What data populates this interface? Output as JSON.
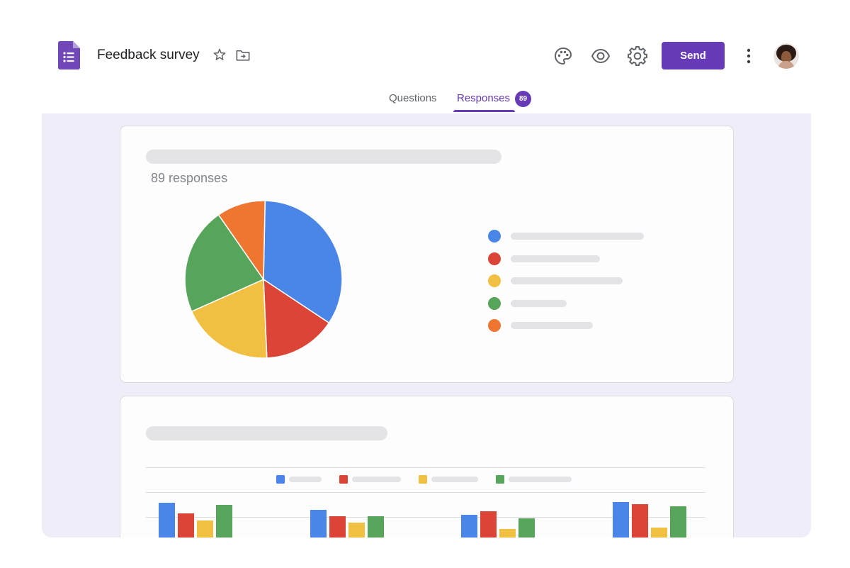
{
  "header": {
    "title": "Feedback survey",
    "send_label": "Send",
    "icons": [
      "forms-logo-icon",
      "star-icon",
      "move-to-folder-icon",
      "palette-icon",
      "preview-eye-icon",
      "settings-gear-icon",
      "more-vert-icon",
      "avatar"
    ]
  },
  "tabs": {
    "questions_label": "Questions",
    "responses_label": "Responses",
    "responses_count": "89"
  },
  "summary": {
    "response_count_text": "89 responses"
  },
  "colors": {
    "accent": "#673ab7",
    "blue": "#4a86e8",
    "red": "#db4437",
    "yellow": "#f1bf42",
    "green": "#57a55a",
    "orange": "#ee7631",
    "background": "#efedf7"
  },
  "chart_data": [
    {
      "type": "pie",
      "title": "",
      "slices": [
        {
          "label": "",
          "value": 34,
          "color": "#4a86e8"
        },
        {
          "label": "",
          "value": 15,
          "color": "#db4437"
        },
        {
          "label": "",
          "value": 19,
          "color": "#f1bf42"
        },
        {
          "label": "",
          "value": 22,
          "color": "#57a55a"
        },
        {
          "label": "",
          "value": 10,
          "color": "#ee7631"
        }
      ],
      "legend": "right"
    },
    {
      "type": "bar",
      "title": "",
      "categories": [
        "",
        "",
        "",
        ""
      ],
      "series": [
        {
          "color": "#4a86e8",
          "values": [
            50,
            40,
            33,
            51
          ]
        },
        {
          "color": "#db4437",
          "values": [
            35,
            31,
            38,
            48
          ]
        },
        {
          "color": "#f1bf42",
          "values": [
            25,
            22,
            13,
            15
          ]
        },
        {
          "color": "#57a55a",
          "values": [
            47,
            31,
            28,
            45
          ]
        }
      ],
      "legend": "top",
      "grid": true
    }
  ]
}
